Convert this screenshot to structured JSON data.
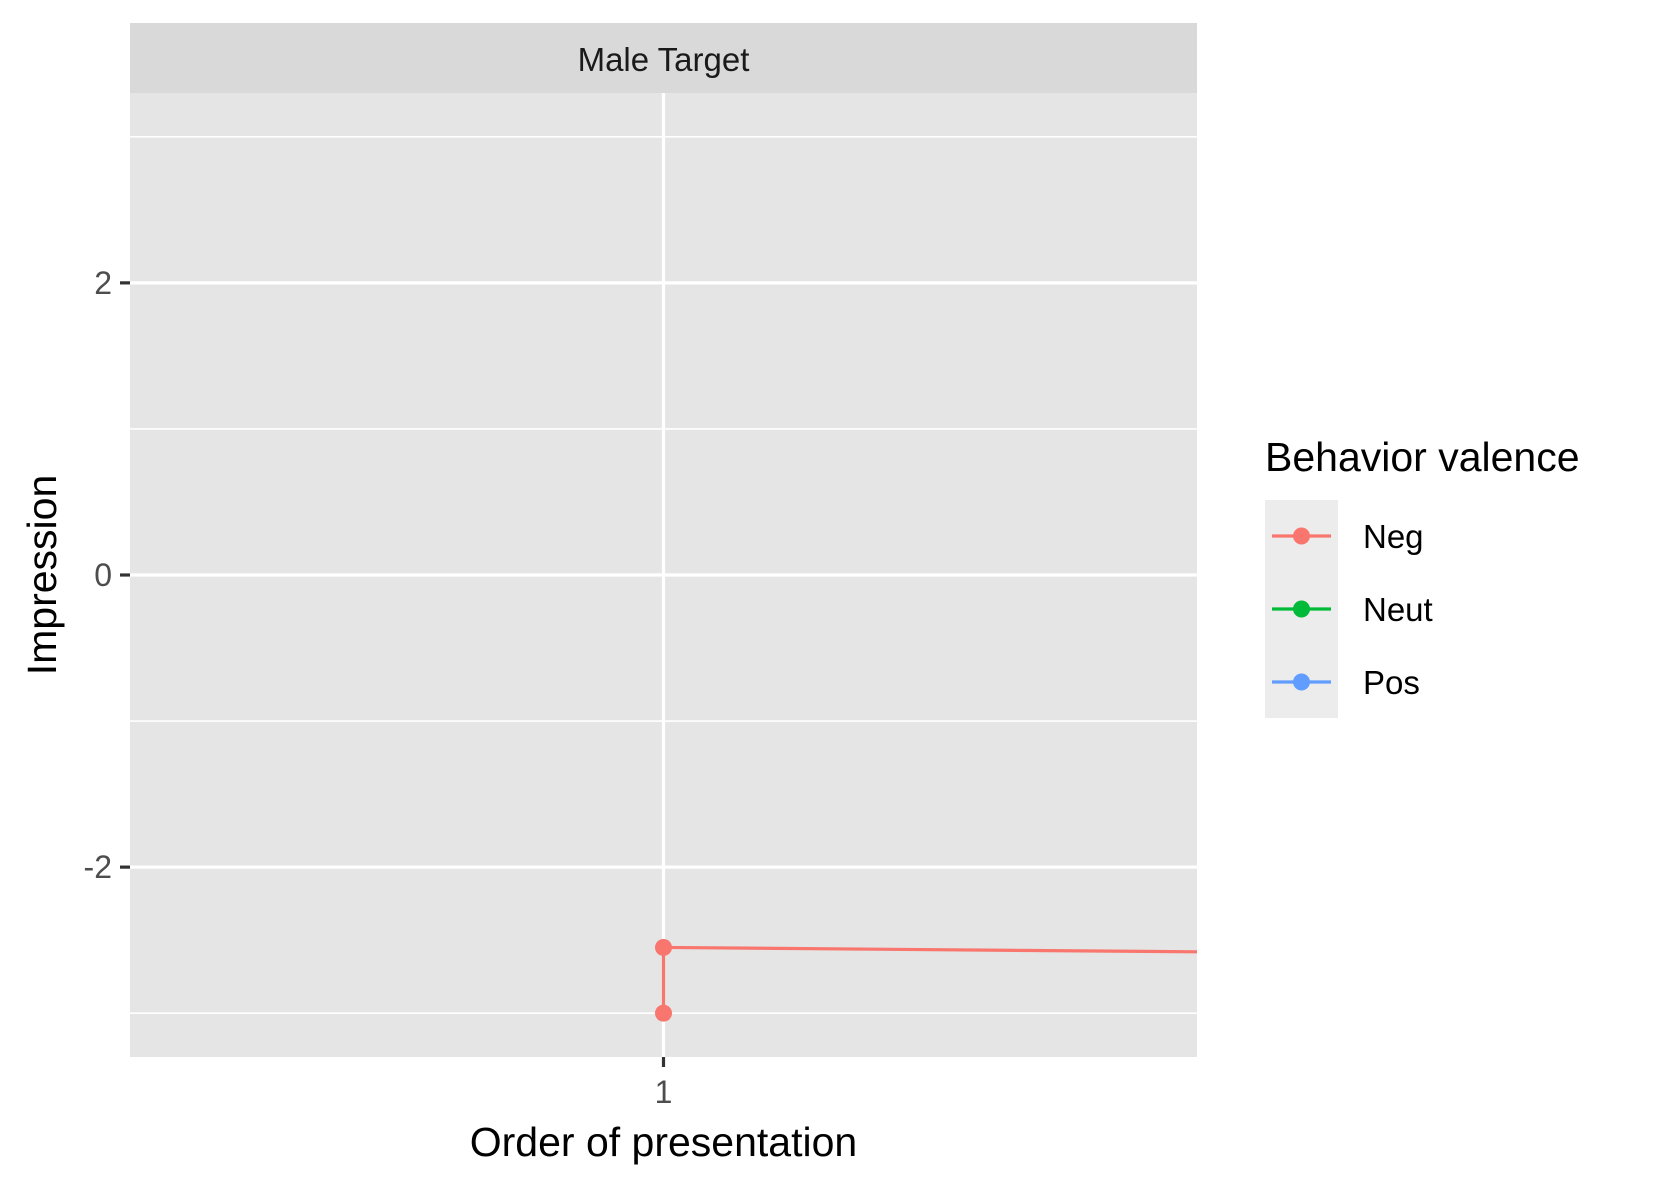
{
  "chart_data": {
    "type": "line",
    "facet_label": "Male Target",
    "xlabel": "Order of presentation",
    "ylabel": "Impression",
    "x_ticks": [
      1
    ],
    "y_ticks": [
      {
        "value": -2,
        "label": "-2"
      },
      {
        "value": 0,
        "label": "0"
      },
      {
        "value": 2,
        "label": "2"
      }
    ],
    "xlim": [
      0.9,
      1.1
    ],
    "ylim": [
      -3.3,
      3.3
    ],
    "grid": true,
    "legend": {
      "title": "Behavior valence",
      "placement": "right",
      "entries": [
        {
          "name": "Neg",
          "color": "#F8766D"
        },
        {
          "name": "Neut",
          "color": "#00BA38"
        },
        {
          "name": "Pos",
          "color": "#619CFF"
        }
      ]
    },
    "segments": [
      {
        "series": "Neg",
        "x": [
          1,
          1
        ],
        "y": [
          -3.0,
          -2.55
        ]
      },
      {
        "series": "Neg",
        "x": [
          1,
          1.1
        ],
        "y": [
          -2.55,
          -2.58
        ]
      }
    ],
    "points": [
      {
        "series": "Neg",
        "x": 1,
        "y": -2.55
      },
      {
        "series": "Neg",
        "x": 1,
        "y": -3.0
      }
    ]
  }
}
